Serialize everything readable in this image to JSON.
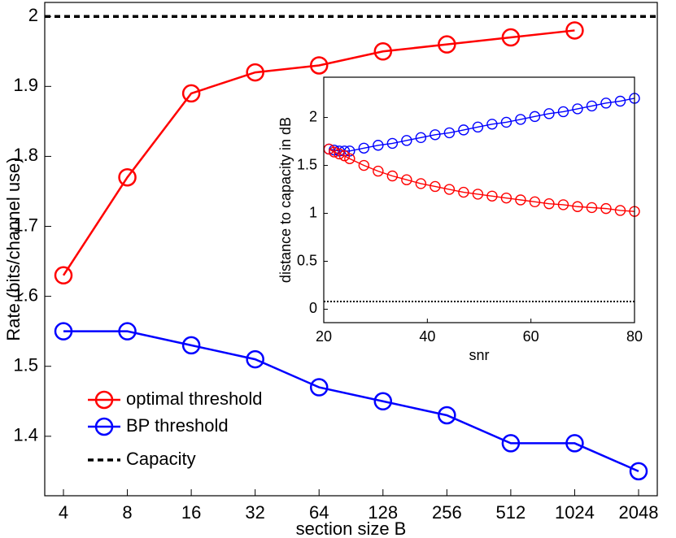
{
  "chart_data": [
    {
      "type": "line",
      "x_label": "section size B",
      "y_label": "Rate (bits/channel use)",
      "categories": [
        "4",
        "8",
        "16",
        "32",
        "64",
        "128",
        "256",
        "512",
        "1024",
        "2048"
      ],
      "series": [
        {
          "name": "optimal threshold",
          "color": "#ff0000",
          "values": [
            1.63,
            1.77,
            1.89,
            1.92,
            1.93,
            1.95,
            1.96,
            1.97,
            1.98,
            null
          ]
        },
        {
          "name": "BP threshold",
          "color": "#0000ff",
          "values": [
            1.55,
            1.55,
            1.53,
            1.51,
            1.47,
            1.45,
            1.43,
            1.39,
            1.39,
            1.35
          ]
        }
      ],
      "reference_line": {
        "name": "Capacity",
        "value": 2,
        "color": "#000000",
        "style": "dashed"
      },
      "ylim": [
        1.315,
        2.02
      ],
      "yticks": [
        1.4,
        1.5,
        1.6,
        1.7,
        1.8,
        1.9,
        2
      ],
      "legend": "lower left"
    },
    {
      "type": "line",
      "x_label": "snr",
      "y_label": "distance to capacity in dB",
      "x": [
        21,
        22,
        23,
        24,
        25,
        27.75,
        30.5,
        33.25,
        36,
        38.75,
        41.5,
        44.25,
        47,
        49.75,
        52.5,
        55.25,
        58,
        60.75,
        63.5,
        66.25,
        69,
        71.75,
        74.5,
        77.25,
        80
      ],
      "series": [
        {
          "color": "#0000ff",
          "values": [
            1.67,
            1.66,
            1.65,
            1.65,
            1.65,
            1.68,
            1.71,
            1.73,
            1.76,
            1.79,
            1.82,
            1.84,
            1.87,
            1.9,
            1.93,
            1.95,
            1.98,
            2.01,
            2.04,
            2.06,
            2.09,
            2.12,
            2.15,
            2.17,
            2.2
          ]
        },
        {
          "color": "#ff0000",
          "values": [
            1.67,
            1.64,
            1.62,
            1.6,
            1.57,
            1.5,
            1.44,
            1.39,
            1.35,
            1.31,
            1.28,
            1.25,
            1.22,
            1.2,
            1.18,
            1.16,
            1.14,
            1.12,
            1.1,
            1.09,
            1.07,
            1.06,
            1.05,
            1.03,
            1.02
          ]
        }
      ],
      "reference_line": {
        "value": 0.08,
        "color": "#000000",
        "style": "dotted"
      },
      "xlim": [
        20,
        80
      ],
      "xticks": [
        20,
        40,
        60,
        80
      ],
      "ylim": [
        -0.14,
        2.42
      ],
      "yticks": [
        0,
        0.5,
        1,
        1.5,
        2
      ]
    }
  ]
}
